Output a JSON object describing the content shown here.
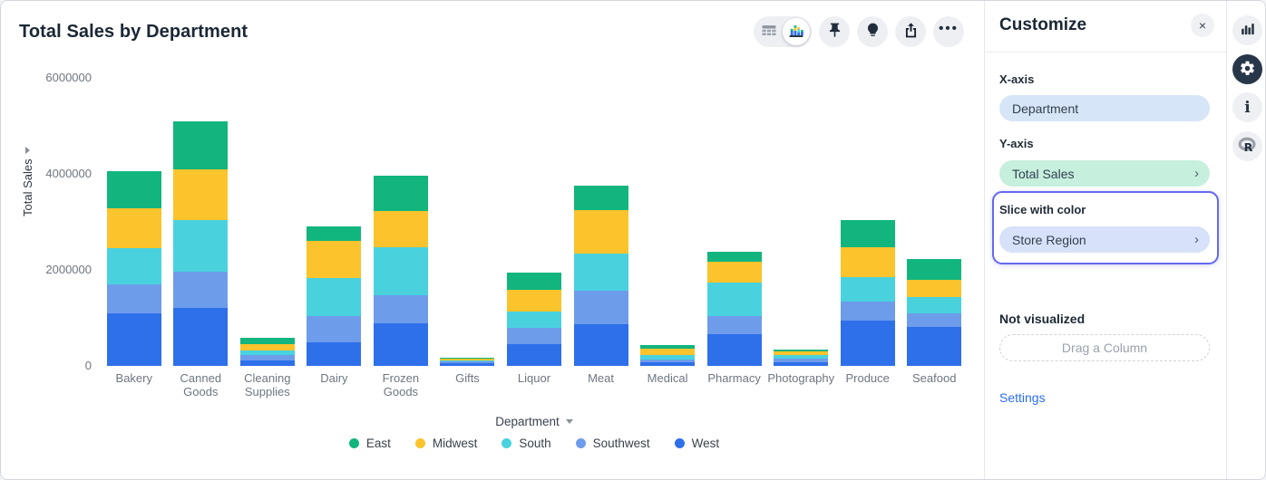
{
  "title": "Total Sales by Department",
  "toolbar": {
    "view_toggle": {
      "table_view": "table-view",
      "chart_view": "chart-view (selected)"
    },
    "pin": "pin",
    "insights": "lightbulb",
    "share": "share-export",
    "more": "•••"
  },
  "chart_data": {
    "type": "bar",
    "stacked": true,
    "title": "Total Sales by Department",
    "xlabel": "Department",
    "ylabel": "Total Sales",
    "ylim": [
      0,
      6000000
    ],
    "yticks": [
      0,
      2000000,
      4000000,
      6000000
    ],
    "grid": false,
    "legend_position": "bottom",
    "stack_order_bottom_to_top": [
      "West",
      "Southwest",
      "South",
      "Midwest",
      "East"
    ],
    "categories": [
      "Bakery",
      "Canned Goods",
      "Cleaning Supplies",
      "Dairy",
      "Frozen Goods",
      "Gifts",
      "Liquor",
      "Meat",
      "Medical",
      "Pharmacy",
      "Photography",
      "Produce",
      "Seafood"
    ],
    "series": [
      {
        "name": "East",
        "color": "#12b57e",
        "values": [
          770000,
          1000000,
          140000,
          300000,
          750000,
          30000,
          360000,
          510000,
          80000,
          210000,
          40000,
          570000,
          430000
        ]
      },
      {
        "name": "Midwest",
        "color": "#fbc32c",
        "values": [
          830000,
          1060000,
          120000,
          770000,
          740000,
          30000,
          450000,
          910000,
          120000,
          430000,
          70000,
          620000,
          360000
        ]
      },
      {
        "name": "South",
        "color": "#49d2de",
        "values": [
          770000,
          1080000,
          110000,
          790000,
          1000000,
          30000,
          340000,
          770000,
          100000,
          700000,
          80000,
          510000,
          340000
        ]
      },
      {
        "name": "Southwest",
        "color": "#6d9ceb",
        "values": [
          590000,
          750000,
          100000,
          550000,
          590000,
          40000,
          340000,
          700000,
          60000,
          380000,
          70000,
          400000,
          280000
        ]
      },
      {
        "name": "West",
        "color": "#2e6fea",
        "values": [
          1100000,
          1210000,
          120000,
          490000,
          890000,
          50000,
          450000,
          870000,
          70000,
          660000,
          80000,
          940000,
          810000
        ]
      }
    ]
  },
  "panel": {
    "title": "Customize",
    "close_glyph": "×",
    "x_axis_label": "X-axis",
    "x_axis_value": "Department",
    "y_axis_label": "Y-axis",
    "y_axis_value": "Total Sales",
    "chevron_glyph": "›",
    "slice_label": "Slice with color",
    "slice_value": "Store Region",
    "not_visualized_label": "Not visualized",
    "drop_placeholder": "Drag a Column",
    "settings_label": "Settings"
  },
  "right_rail": {
    "icons": [
      "bar-chart",
      "settings-gear (active)",
      "info",
      "r-logo"
    ]
  },
  "colors": {
    "title_text": "#1b2735",
    "tick_text": "#6e7681",
    "slice_highlight_border": "#6569ee",
    "settings_link": "#2a6df4",
    "x_axis_pill_bg": "#d7e5f8",
    "y_axis_pill_bg": "#c6efdd",
    "slice_pill_bg": "#d8e1fa",
    "toolbar_circle_bg": "#edeff3",
    "rail_active_bg": "#273648"
  }
}
